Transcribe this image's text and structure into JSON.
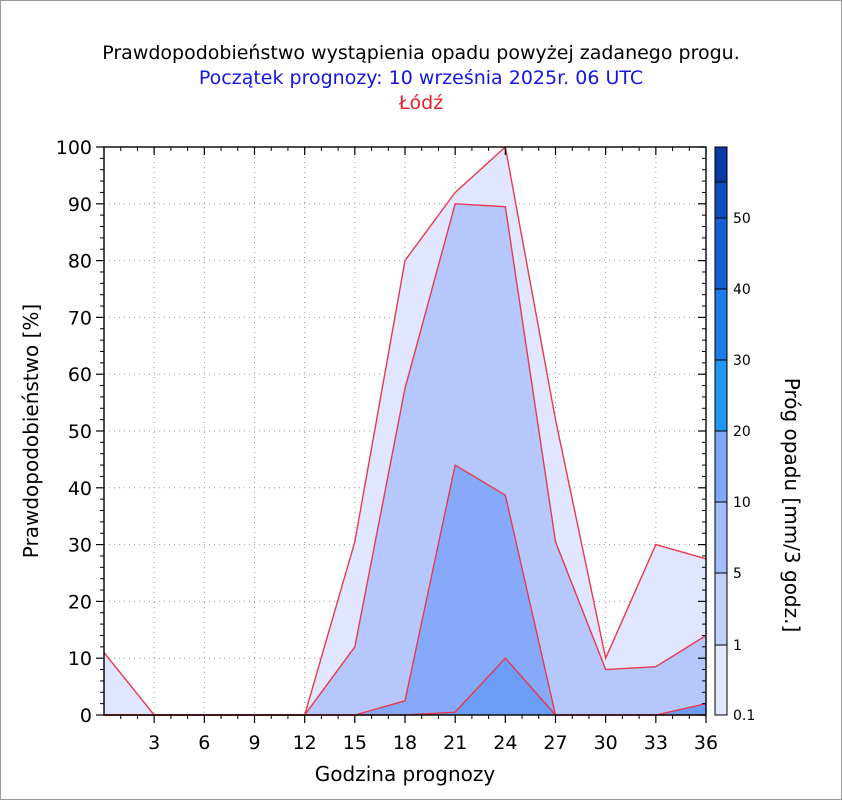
{
  "chart_data": {
    "type": "area",
    "title": "Prawdopodobieństwo wystąpienia opadu powyżej zadanego progu.",
    "subtitle": "Początek prognozy: 10 września 2025r. 06 UTC",
    "location": "Łódź",
    "xlabel": "Godzina prognozy",
    "ylabel": "Prawdopodobieństwo [%]",
    "colorbar_label": "Próg opadu [mm/3 godz.]",
    "x": [
      0,
      3,
      6,
      9,
      12,
      15,
      18,
      21,
      24,
      27,
      30,
      33,
      36
    ],
    "xticks": [
      "3",
      "6",
      "9",
      "12",
      "15",
      "18",
      "21",
      "24",
      "27",
      "30",
      "33",
      "36"
    ],
    "xlim": [
      0,
      36
    ],
    "ylim": [
      0,
      100
    ],
    "yticks": [
      "0",
      "10",
      "20",
      "30",
      "40",
      "50",
      "60",
      "70",
      "80",
      "90",
      "100"
    ],
    "grid": true,
    "series": [
      {
        "name": "0.1",
        "color": "#dfe6fd",
        "values": [
          11,
          0,
          0,
          0,
          0,
          30.5,
          80,
          92,
          100,
          52,
          10,
          30,
          27.5
        ]
      },
      {
        "name": "1",
        "color": "#b6c8fb",
        "values": [
          0,
          0,
          0,
          0,
          0,
          12,
          57.5,
          90,
          89.5,
          30.5,
          8,
          8.5,
          14
        ]
      },
      {
        "name": "5",
        "color": "#86aaf9",
        "values": [
          0,
          0,
          0,
          0,
          0,
          0,
          2.5,
          44,
          38.7,
          0,
          0,
          0,
          0
        ]
      },
      {
        "name": "10",
        "color": "#6d9cf6",
        "values": [
          0,
          0,
          0,
          0,
          0,
          0,
          0,
          0.5,
          10,
          0,
          0,
          0,
          2
        ]
      }
    ],
    "outline_color": "#e83a4c",
    "colorbar": {
      "labels": [
        "0.1",
        "1",
        "5",
        "10",
        "20",
        "30",
        "40",
        "50"
      ],
      "colors": [
        "#e3e9fd",
        "#c1d1fb",
        "#a3bdfa",
        "#7fa7f8",
        "#2196f3",
        "#1e7ce6",
        "#1660d6",
        "#0d4fbf",
        "#0a3aa3"
      ]
    }
  },
  "colors": {
    "title": "#000000",
    "subtitle": "#1414e6",
    "location": "#e8202c"
  }
}
